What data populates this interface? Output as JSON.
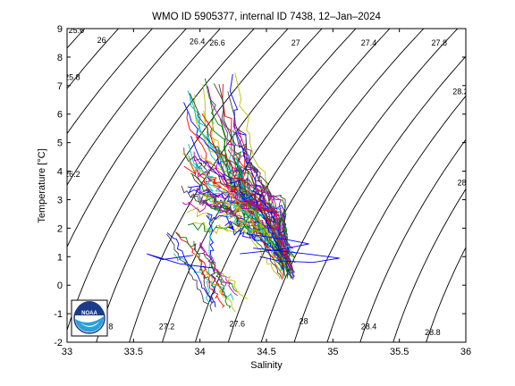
{
  "chart_data": {
    "type": "line",
    "title": "WMO ID 5905377, internal ID 7438, 12–Jan–2024",
    "xlabel": "Salinity",
    "ylabel": "Temperature [°C]",
    "xlim": [
      33,
      36
    ],
    "ylim": [
      -2,
      9
    ],
    "x_ticks": [
      "33",
      "33.5",
      "34",
      "34.5",
      "35",
      "35.5",
      "36"
    ],
    "y_ticks": [
      "-2",
      "-1",
      "0",
      "1",
      "2",
      "3",
      "4",
      "5",
      "6",
      "7",
      "8",
      "9"
    ],
    "density_contours": {
      "levels": [
        25.6,
        25.8,
        26,
        26.2,
        26.4,
        26.6,
        26.8,
        27,
        27.2,
        27.4,
        27.6,
        27.8,
        28,
        28.2,
        28.4,
        28.6,
        28.8
      ],
      "labels": [
        {
          "text": "25.6",
          "s": 33.07,
          "t": 8.85
        },
        {
          "text": "26",
          "s": 33.26,
          "t": 8.5
        },
        {
          "text": "26.4",
          "s": 33.98,
          "t": 8.45
        },
        {
          "text": "26.6",
          "s": 34.13,
          "t": 8.4
        },
        {
          "text": "27",
          "s": 34.72,
          "t": 8.4
        },
        {
          "text": "27.4",
          "s": 35.27,
          "t": 8.4
        },
        {
          "text": "27.8",
          "s": 35.8,
          "t": 8.4
        },
        {
          "text": "25.8",
          "s": 33.04,
          "t": 7.2
        },
        {
          "text": "28.2",
          "s": 35.96,
          "t": 6.7
        },
        {
          "text": "26.2",
          "s": 33.04,
          "t": 3.8
        },
        {
          "text": "28",
          "s": 35.97,
          "t": 3.5
        },
        {
          "text": "27",
          "s": 34.02,
          "t": 4.1
        },
        {
          "text": "27.2",
          "s": 33.75,
          "t": -1.55
        },
        {
          "text": "27.6",
          "s": 34.28,
          "t": -1.45
        },
        {
          "text": "28",
          "s": 34.78,
          "t": -1.35
        },
        {
          "text": "28.4",
          "s": 35.27,
          "t": -1.55
        },
        {
          "text": "28.8",
          "s": 35.75,
          "t": -1.75
        },
        {
          "text": ".8",
          "s": 33.32,
          "t": -1.55
        }
      ]
    },
    "profiles_summary": "many colored T-S profiles from multiple cycles",
    "colors": [
      "#0000ff",
      "#008000",
      "#ff0000",
      "#00bfbf",
      "#bf00bf",
      "#bfbf00",
      "#404040"
    ]
  },
  "logo": {
    "text": "NOAA"
  }
}
